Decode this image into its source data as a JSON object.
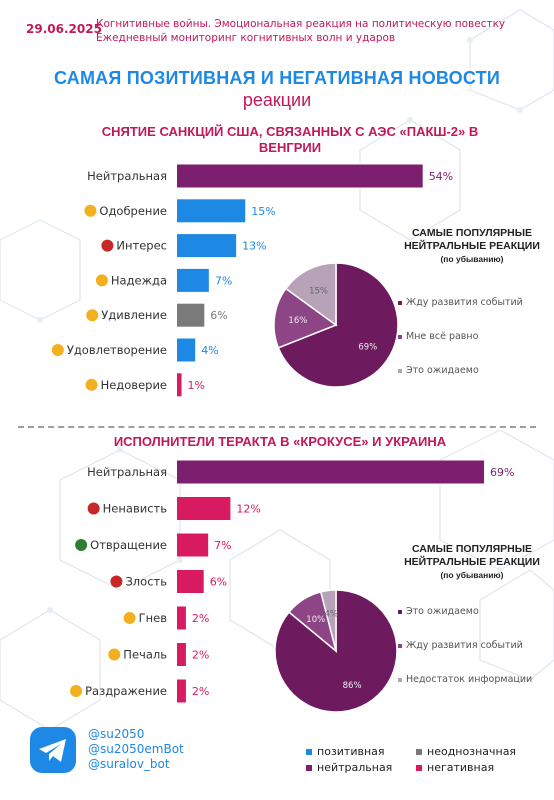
{
  "header": {
    "date": "29.06.2025",
    "line1": "Когнитивные войны. Эмоциональная реакция на политическую повестку",
    "line2": "Ежедневный мониторинг когнитивных волн и ударов"
  },
  "title": "САМАЯ ПОЗИТИВНАЯ И НЕГАТИВНАЯ НОВОСТИ",
  "subtitle": "реакции",
  "colors": {
    "positive": "#1e88e5",
    "neutral": "#7b1f6e",
    "ambiguous": "#7a7a7a",
    "negative": "#d81b60",
    "pie_dark": "#6d1b5e",
    "pie_mid": "#8e4585",
    "pie_light": "#b7a2b8"
  },
  "chart_data": [
    {
      "type": "bar",
      "title": "СНЯТИЕ САНКЦИЙ США, СВЯЗАННЫХ С АЭС «ПАКШ-2» В ВЕНГРИИ",
      "categories": [
        "Нейтральная",
        "Одобрение",
        "Интерес",
        "Надежда",
        "Удивление",
        "Удовлетворение",
        "Недоверие"
      ],
      "values": [
        54,
        15,
        13,
        7,
        6,
        4,
        1
      ],
      "value_labels": [
        "54%",
        "15%",
        "13%",
        "7%",
        "6%",
        "4%",
        "1%"
      ],
      "groups": [
        "neutral",
        "positive",
        "positive",
        "positive",
        "ambiguous",
        "positive",
        "negative"
      ],
      "icons": [
        "",
        "hugging-face-icon",
        "interrobang-icon",
        "praying-hands-icon",
        "surprised-face-icon",
        "satisfied-face-icon",
        "distrust-face-icon"
      ]
    },
    {
      "type": "pie",
      "title": "САМЫЕ ПОПУЛЯРНЫЕ НЕЙТРАЛЬНЫЕ РЕАКЦИИ",
      "subtitle": "(по убыванию)",
      "labels": [
        "Жду развития событий",
        "Мне всё равно",
        "Это ожидаемо"
      ],
      "values": [
        69,
        16,
        15
      ],
      "value_labels": [
        "69%",
        "16%",
        "15%"
      ]
    },
    {
      "type": "bar",
      "title": "ИСПОЛНИТЕЛИ ТЕРАКТА В «КРОКУСЕ» И УКРАИНА",
      "categories": [
        "Нейтральная",
        "Ненависть",
        "Отвращение",
        "Злость",
        "Гнев",
        "Печаль",
        "Раздражение"
      ],
      "values": [
        69,
        12,
        7,
        6,
        2,
        2,
        2
      ],
      "value_labels": [
        "69%",
        "12%",
        "7%",
        "6%",
        "2%",
        "2%",
        "2%"
      ],
      "groups": [
        "neutral",
        "negative",
        "negative",
        "negative",
        "negative",
        "negative",
        "negative"
      ],
      "icons": [
        "",
        "hatred-face-icon",
        "disgust-face-icon",
        "angry-face-icon",
        "rage-face-icon",
        "sad-face-icon",
        "annoyed-face-icon"
      ]
    },
    {
      "type": "pie",
      "title": "САМЫЕ ПОПУЛЯРНЫЕ НЕЙТРАЛЬНЫЕ РЕАКЦИИ",
      "subtitle": "(по убыванию)",
      "labels": [
        "Это ожидаемо",
        "Жду развития событий",
        "Недостаток информации"
      ],
      "values": [
        86,
        10,
        4
      ],
      "value_labels": [
        "86%",
        "10%",
        "4%"
      ]
    }
  ],
  "social": {
    "icon": "telegram-icon",
    "handles": [
      "@su2050",
      "@su2050emBot",
      "@suralov_bot"
    ]
  },
  "legend": {
    "positive": "позитивная",
    "ambiguous": "неоднозначная",
    "neutral": "нейтральная",
    "negative": "негативная"
  }
}
